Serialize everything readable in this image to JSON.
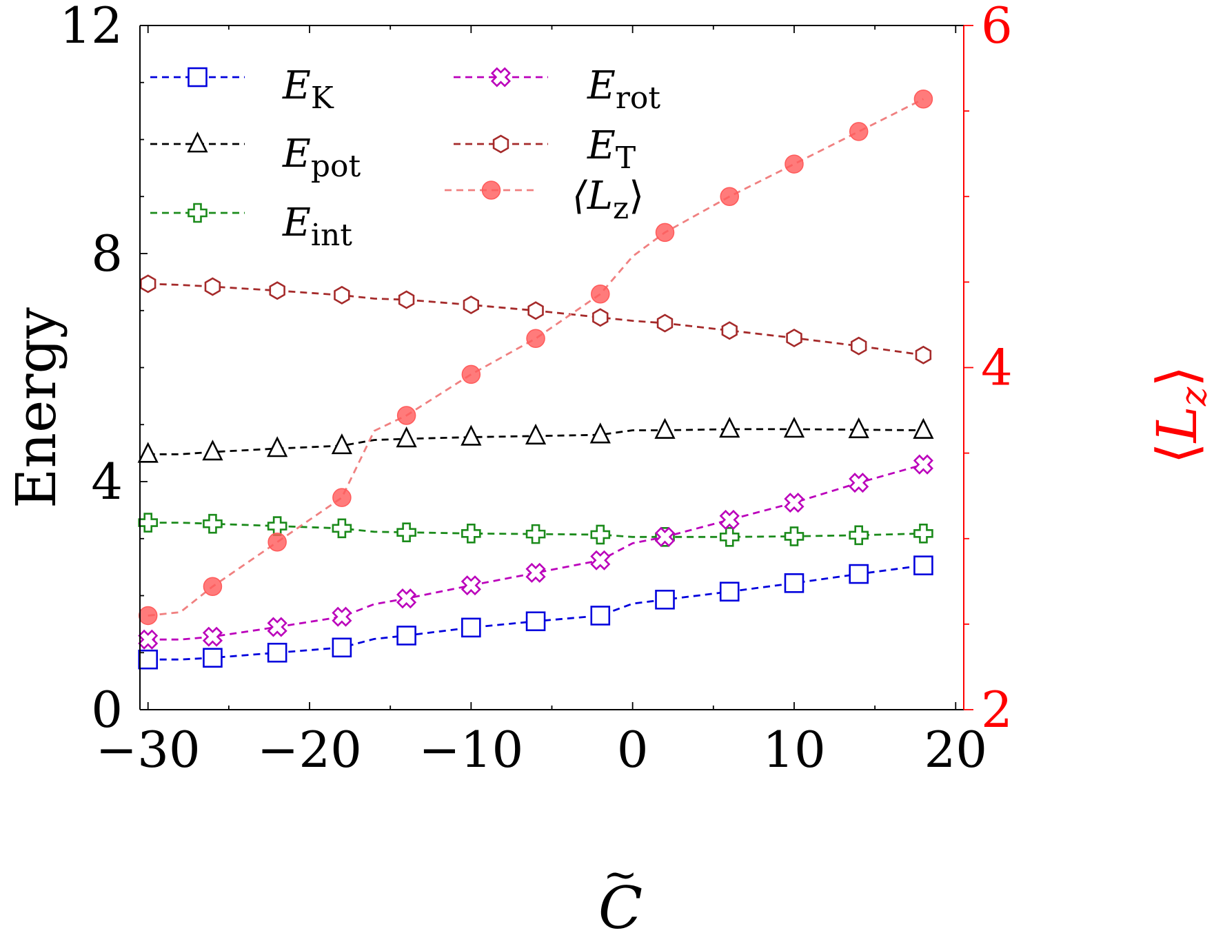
{
  "chart_data": {
    "type": "line",
    "xlabel": "C̃",
    "ylabel": "Energy",
    "y2label": "⟨L_z⟩",
    "xlim": [
      -30.5,
      20.5
    ],
    "ylim": [
      0,
      12
    ],
    "y2lim": [
      2,
      6
    ],
    "xticks": [
      -30,
      -20,
      -10,
      0,
      10,
      20
    ],
    "xtick_labels": [
      "−30",
      "−20",
      "−10",
      "0",
      "10",
      "20"
    ],
    "yticks": [
      0,
      4,
      8,
      12
    ],
    "ytick_labels": [
      "0",
      "4",
      "8",
      "12"
    ],
    "y2ticks": [
      2,
      4,
      6
    ],
    "y2tick_labels": [
      "2",
      "4",
      "6"
    ],
    "legend_position": "top",
    "series": [
      {
        "name": "E_K",
        "label_main": "E",
        "label_sub": "K",
        "axis": "left",
        "color": "#0000dd",
        "marker": "square",
        "filled": false,
        "x": [
          -30,
          -28,
          -26,
          -22,
          -18,
          -16,
          -14,
          -10,
          -6,
          -2,
          0,
          2,
          6,
          10,
          14,
          18
        ],
        "y": [
          0.88,
          0.88,
          0.91,
          1.0,
          1.09,
          1.24,
          1.3,
          1.44,
          1.55,
          1.65,
          1.86,
          1.93,
          2.07,
          2.22,
          2.38,
          2.53
        ]
      },
      {
        "name": "E_pot",
        "label_main": "E",
        "label_sub": "pot",
        "axis": "left",
        "color": "#000000",
        "marker": "triangle",
        "filled": false,
        "x": [
          -30,
          -28,
          -26,
          -22,
          -18,
          -16,
          -14,
          -10,
          -6,
          -2,
          0,
          2,
          6,
          10,
          14,
          18
        ],
        "y": [
          4.48,
          4.48,
          4.52,
          4.58,
          4.63,
          4.73,
          4.75,
          4.78,
          4.8,
          4.82,
          4.9,
          4.9,
          4.92,
          4.92,
          4.91,
          4.9
        ]
      },
      {
        "name": "E_int",
        "label_main": "E",
        "label_sub": "int",
        "axis": "left",
        "color": "#1a8a1a",
        "marker": "plus",
        "filled": false,
        "x": [
          -30,
          -28,
          -26,
          -22,
          -18,
          -16,
          -14,
          -10,
          -6,
          -2,
          0,
          2,
          6,
          10,
          14,
          18
        ],
        "y": [
          3.28,
          3.28,
          3.26,
          3.22,
          3.18,
          3.12,
          3.11,
          3.09,
          3.08,
          3.07,
          3.03,
          3.03,
          3.03,
          3.04,
          3.06,
          3.09
        ]
      },
      {
        "name": "E_rot",
        "label_main": "E",
        "label_sub": "rot",
        "axis": "left",
        "color": "#bb00bb",
        "marker": "x",
        "filled": false,
        "x": [
          -30,
          -28,
          -26,
          -22,
          -18,
          -16,
          -14,
          -10,
          -6,
          -2,
          0,
          2,
          6,
          10,
          14,
          18
        ],
        "y": [
          1.23,
          1.23,
          1.28,
          1.45,
          1.63,
          1.85,
          1.95,
          2.18,
          2.4,
          2.62,
          2.92,
          3.03,
          3.33,
          3.63,
          3.98,
          4.3
        ]
      },
      {
        "name": "E_T",
        "label_main": "E",
        "label_sub": "T",
        "axis": "left",
        "color": "#a52a2a",
        "marker": "hexagon",
        "filled": false,
        "x": [
          -30,
          -28,
          -26,
          -22,
          -18,
          -16,
          -14,
          -10,
          -6,
          -2,
          0,
          2,
          6,
          10,
          14,
          18
        ],
        "y": [
          7.47,
          7.45,
          7.42,
          7.35,
          7.27,
          7.21,
          7.19,
          7.1,
          7.0,
          6.88,
          6.82,
          6.78,
          6.65,
          6.52,
          6.38,
          6.22
        ]
      },
      {
        "name": "⟨L_z⟩",
        "label_main": "⟨L",
        "label_sub": "z",
        "label_end": "⟩",
        "axis": "right",
        "color": "#ff5a5a",
        "line_color": "#f08080",
        "marker": "circle",
        "filled": true,
        "x": [
          -30,
          -28,
          -26,
          -22,
          -18,
          -16,
          -14,
          -10,
          -6,
          -2,
          0,
          2,
          6,
          10,
          14,
          18
        ],
        "y": [
          2.55,
          2.57,
          2.72,
          2.98,
          3.24,
          3.63,
          3.72,
          3.96,
          4.17,
          4.43,
          4.65,
          4.79,
          5.0,
          5.19,
          5.38,
          5.57
        ]
      }
    ]
  }
}
